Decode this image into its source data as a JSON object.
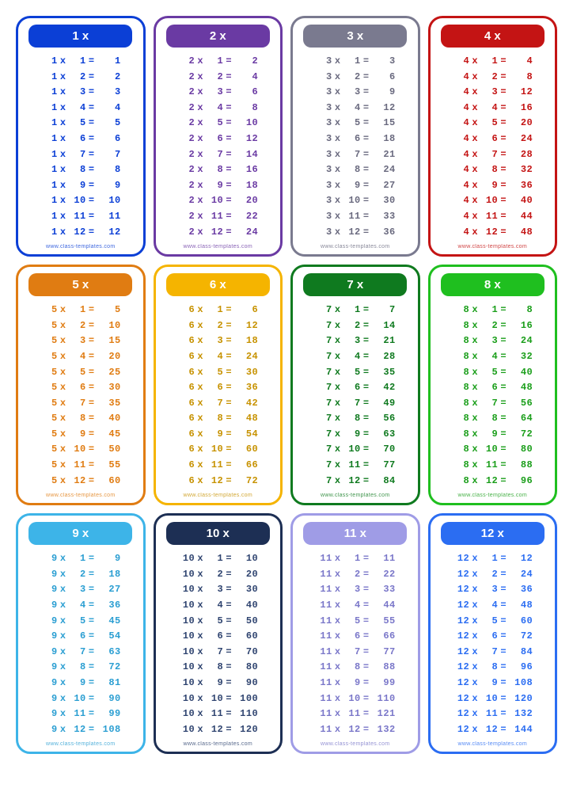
{
  "background_color": "#ffffff",
  "footer_text": "www.class-templates.com",
  "max_multiplier": 12,
  "op_symbol": "x",
  "eq_symbol": "=",
  "tables": [
    {
      "n": 1,
      "title": "1 x",
      "border": "#0b3fd6",
      "header_bg": "#0b3fd6",
      "text": "#0b3fd6"
    },
    {
      "n": 2,
      "title": "2 x",
      "border": "#6a3aa3",
      "header_bg": "#6a3aa3",
      "text": "#6a3aa3"
    },
    {
      "n": 3,
      "title": "3 x",
      "border": "#7a7a8f",
      "header_bg": "#7a7a8f",
      "text": "#6a6a7f"
    },
    {
      "n": 4,
      "title": "4 x",
      "border": "#c41414",
      "header_bg": "#c41414",
      "text": "#c41414"
    },
    {
      "n": 5,
      "title": "5 x",
      "border": "#e07c12",
      "header_bg": "#e07c12",
      "text": "#e07c12"
    },
    {
      "n": 6,
      "title": "6 x",
      "border": "#f5b400",
      "header_bg": "#f5b400",
      "text": "#c79200"
    },
    {
      "n": 7,
      "title": "7 x",
      "border": "#0f7a1f",
      "header_bg": "#0f7a1f",
      "text": "#0f7a1f"
    },
    {
      "n": 8,
      "title": "8 x",
      "border": "#1fbf1f",
      "header_bg": "#1fbf1f",
      "text": "#1a9e1a"
    },
    {
      "n": 9,
      "title": "9 x",
      "border": "#3db4e8",
      "header_bg": "#3db4e8",
      "text": "#2a9ed2"
    },
    {
      "n": 10,
      "title": "10 x",
      "border": "#1d2f54",
      "header_bg": "#1d2f54",
      "text": "#2f4470"
    },
    {
      "n": 11,
      "title": "11 x",
      "border": "#9f9ce6",
      "header_bg": "#9f9ce6",
      "text": "#7a77c9"
    },
    {
      "n": 12,
      "title": "12 x",
      "border": "#2b6df2",
      "header_bg": "#2b6df2",
      "text": "#2b6df2"
    }
  ]
}
